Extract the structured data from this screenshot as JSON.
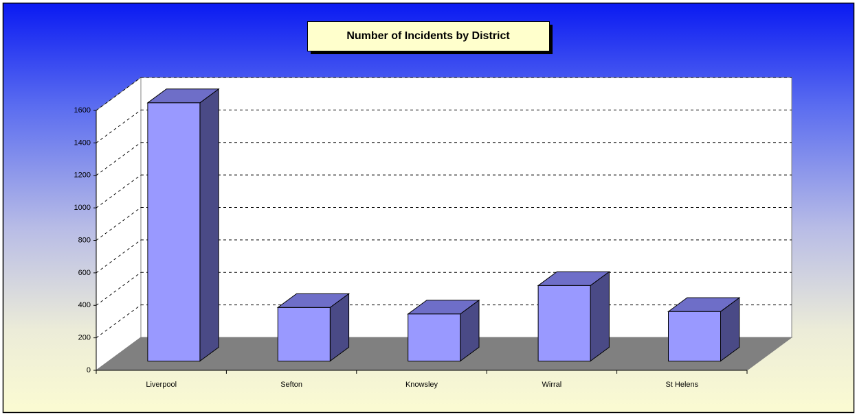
{
  "chart_data": {
    "type": "bar",
    "title": "Number of Incidents by District",
    "categories": [
      "Liverpool",
      "Sefton",
      "Knowsley",
      "Wirral",
      "St Helens"
    ],
    "values": [
      1590,
      330,
      290,
      465,
      305
    ],
    "color": "#9999ff",
    "ylim": [
      0,
      1600
    ],
    "yticks": [
      0,
      200,
      400,
      600,
      800,
      1000,
      1200,
      1400,
      1600
    ],
    "grid": true
  }
}
